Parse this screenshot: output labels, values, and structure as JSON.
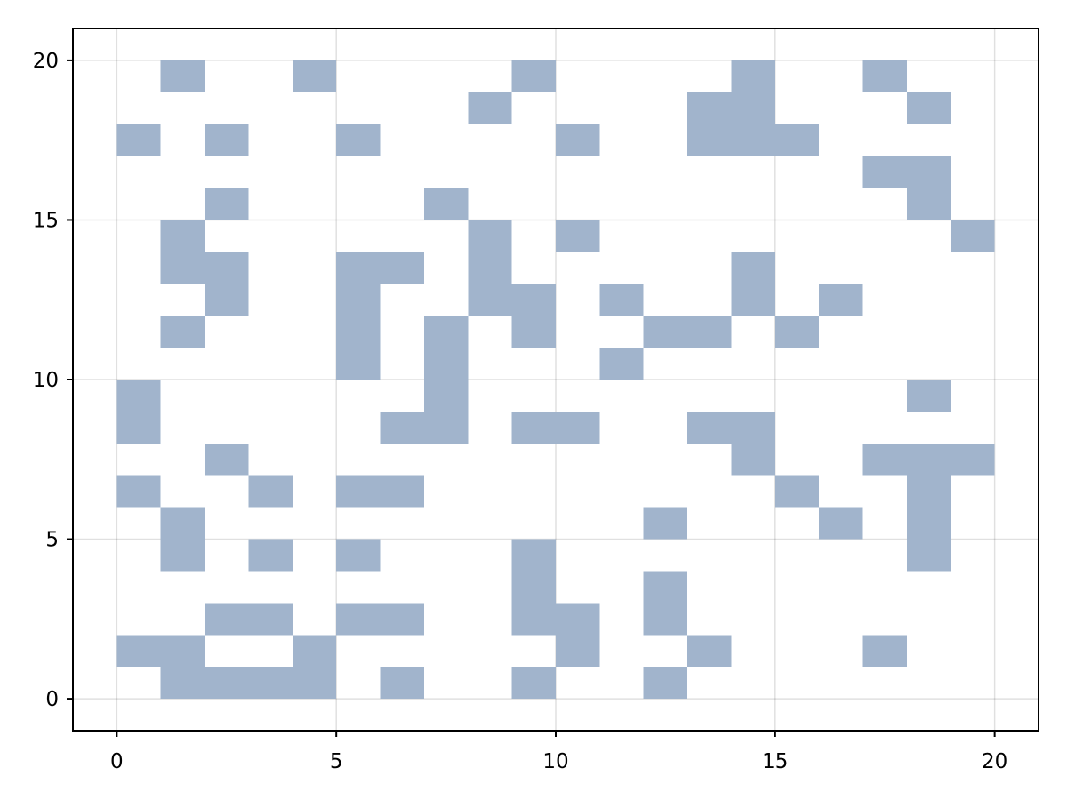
{
  "chart_data": {
    "type": "heatmap",
    "title": "",
    "xlabel": "",
    "ylabel": "",
    "xlim": [
      -1,
      21
    ],
    "ylim": [
      -1,
      21
    ],
    "xticks": [
      0,
      5,
      10,
      15,
      20
    ],
    "yticks": [
      0,
      5,
      10,
      15,
      20
    ],
    "grid": true,
    "cell_color": "#a1b4cc",
    "cell_size": 1,
    "description_of_cells": "Each filled cell spans [x, x+1] x [y, y+1]; cells listed as [x, y] lower-left corners",
    "cells": [
      [
        1,
        0
      ],
      [
        2,
        0
      ],
      [
        3,
        0
      ],
      [
        4,
        0
      ],
      [
        6,
        0
      ],
      [
        9,
        0
      ],
      [
        12,
        0
      ],
      [
        0,
        1
      ],
      [
        1,
        1
      ],
      [
        4,
        1
      ],
      [
        10,
        1
      ],
      [
        13,
        1
      ],
      [
        17,
        1
      ],
      [
        2,
        2
      ],
      [
        3,
        2
      ],
      [
        5,
        2
      ],
      [
        6,
        2
      ],
      [
        9,
        2
      ],
      [
        10,
        2
      ],
      [
        12,
        2
      ],
      [
        9,
        3
      ],
      [
        12,
        3
      ],
      [
        1,
        4
      ],
      [
        3,
        4
      ],
      [
        5,
        4
      ],
      [
        9,
        4
      ],
      [
        18,
        4
      ],
      [
        1,
        5
      ],
      [
        12,
        5
      ],
      [
        16,
        5
      ],
      [
        18,
        5
      ],
      [
        0,
        6
      ],
      [
        3,
        6
      ],
      [
        5,
        6
      ],
      [
        6,
        6
      ],
      [
        15,
        6
      ],
      [
        18,
        6
      ],
      [
        2,
        7
      ],
      [
        14,
        7
      ],
      [
        17,
        7
      ],
      [
        18,
        7
      ],
      [
        19,
        7
      ],
      [
        0,
        8
      ],
      [
        6,
        8
      ],
      [
        7,
        8
      ],
      [
        9,
        8
      ],
      [
        10,
        8
      ],
      [
        13,
        8
      ],
      [
        14,
        8
      ],
      [
        0,
        9
      ],
      [
        7,
        9
      ],
      [
        18,
        9
      ],
      [
        5,
        10
      ],
      [
        7,
        10
      ],
      [
        11,
        10
      ],
      [
        1,
        11
      ],
      [
        5,
        11
      ],
      [
        7,
        11
      ],
      [
        9,
        11
      ],
      [
        12,
        11
      ],
      [
        13,
        11
      ],
      [
        15,
        11
      ],
      [
        2,
        12
      ],
      [
        5,
        12
      ],
      [
        8,
        12
      ],
      [
        9,
        12
      ],
      [
        11,
        12
      ],
      [
        14,
        12
      ],
      [
        16,
        12
      ],
      [
        1,
        13
      ],
      [
        2,
        13
      ],
      [
        5,
        13
      ],
      [
        6,
        13
      ],
      [
        8,
        13
      ],
      [
        14,
        13
      ],
      [
        1,
        14
      ],
      [
        8,
        14
      ],
      [
        10,
        14
      ],
      [
        19,
        14
      ],
      [
        2,
        15
      ],
      [
        7,
        15
      ],
      [
        18,
        15
      ],
      [
        17,
        16
      ],
      [
        18,
        16
      ],
      [
        0,
        17
      ],
      [
        2,
        17
      ],
      [
        5,
        17
      ],
      [
        10,
        17
      ],
      [
        13,
        17
      ],
      [
        14,
        17
      ],
      [
        15,
        17
      ],
      [
        8,
        18
      ],
      [
        13,
        18
      ],
      [
        14,
        18
      ],
      [
        18,
        18
      ],
      [
        1,
        19
      ],
      [
        4,
        19
      ],
      [
        9,
        19
      ],
      [
        14,
        19
      ],
      [
        17,
        19
      ]
    ]
  }
}
